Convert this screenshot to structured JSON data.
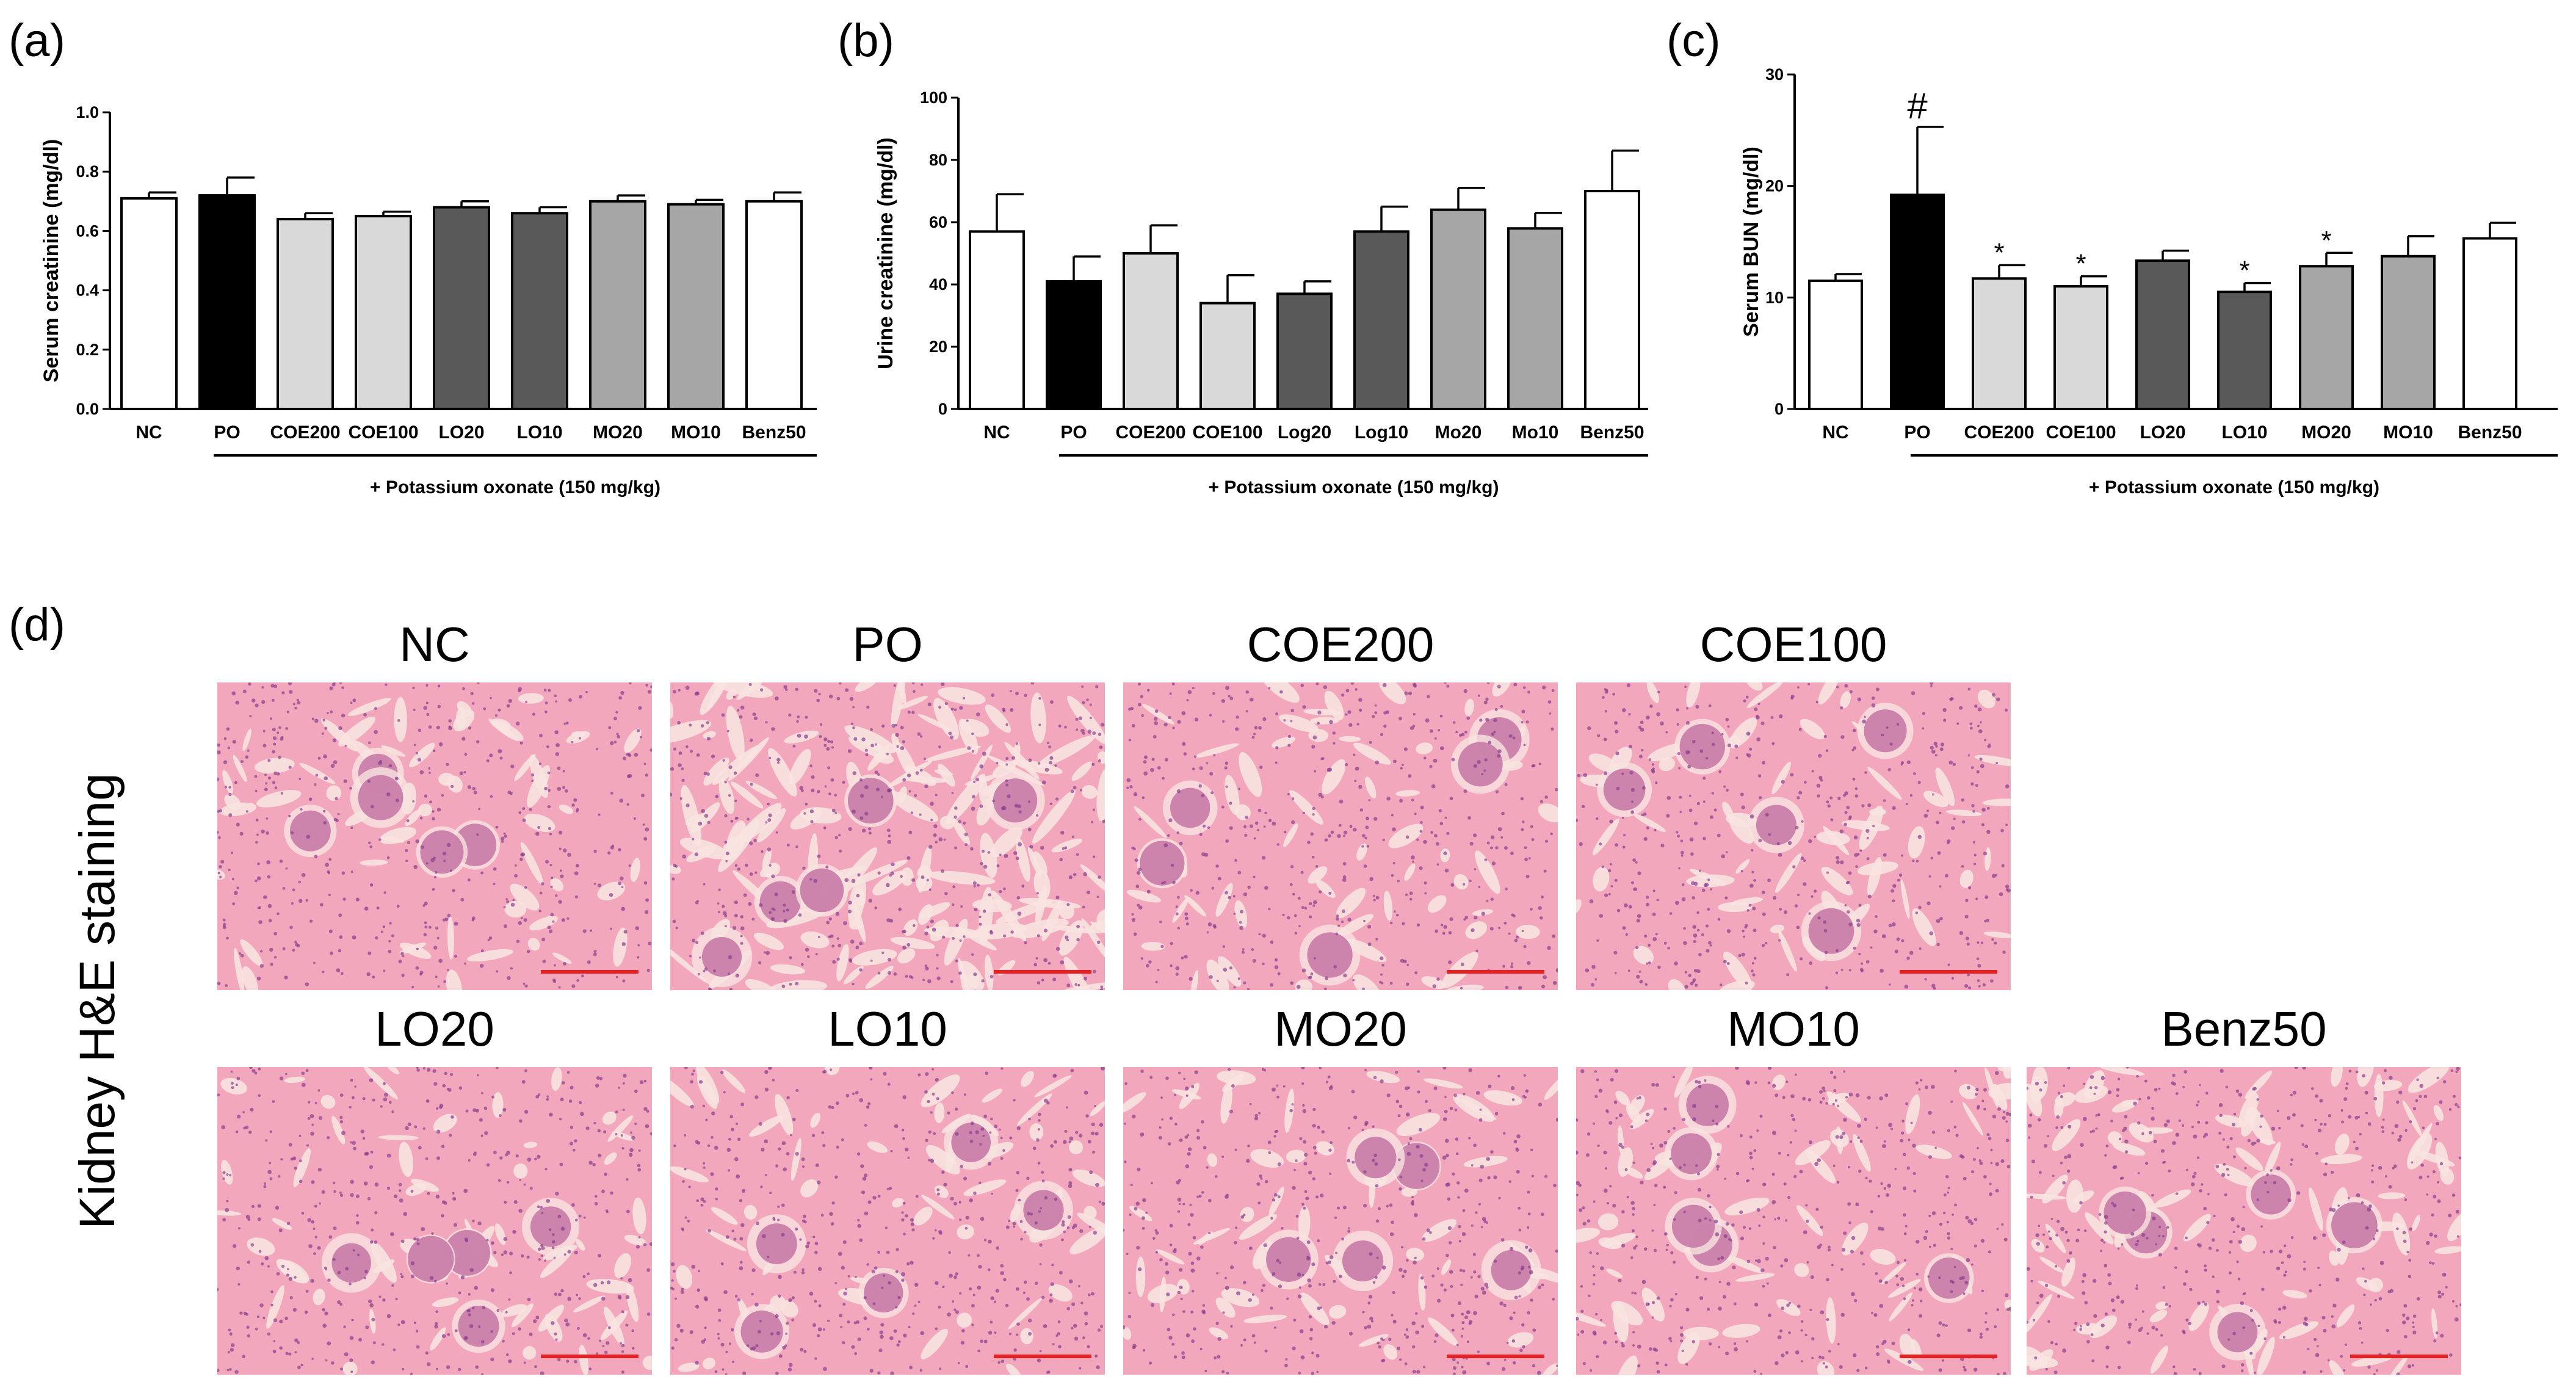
{
  "chart_data": [
    {
      "type": "bar",
      "panel": "(a)",
      "ylabel": "Serum creatinine (mg/dl)",
      "ylim": [
        0,
        1.0
      ],
      "yticks": [
        "0.0",
        "0.2",
        "0.4",
        "0.6",
        "0.8",
        "1.0"
      ],
      "ytick_values": [
        0,
        0.2,
        0.4,
        0.6,
        0.8,
        1.0
      ],
      "categories": [
        "NC",
        "PO",
        "COE200",
        "COE100",
        "LO20",
        "LO10",
        "MO20",
        "MO10",
        "Benz50"
      ],
      "values": [
        0.71,
        0.72,
        0.64,
        0.65,
        0.68,
        0.66,
        0.7,
        0.69,
        0.7
      ],
      "errors": [
        0.02,
        0.06,
        0.02,
        0.015,
        0.02,
        0.02,
        0.02,
        0.015,
        0.03
      ],
      "significance": [
        "",
        "",
        "",
        "",
        "",
        "",
        "",
        "",
        ""
      ],
      "treatment_label": "+ Potassium oxonate (150 mg/kg)"
    },
    {
      "type": "bar",
      "panel": "(b)",
      "ylabel": "Urine creatinine (mg/dl)",
      "ylim": [
        0,
        100
      ],
      "yticks": [
        "0",
        "20",
        "40",
        "60",
        "80",
        "100"
      ],
      "ytick_values": [
        0,
        20,
        40,
        60,
        80,
        100
      ],
      "categories": [
        "NC",
        "PO",
        "COE200",
        "COE100",
        "Log20",
        "Log10",
        "Mo20",
        "Mo10",
        "Benz50"
      ],
      "values": [
        57,
        41,
        50,
        34,
        37,
        57,
        64,
        58,
        70
      ],
      "errors": [
        12,
        8,
        9,
        9,
        4,
        8,
        7,
        5,
        13
      ],
      "significance": [
        "",
        "",
        "",
        "",
        "",
        "",
        "",
        "",
        ""
      ],
      "treatment_label": "+ Potassium oxonate (150 mg/kg)"
    },
    {
      "type": "bar",
      "panel": "(c)",
      "ylabel": "Serum BUN (mg/dl)",
      "ylim": [
        0,
        30
      ],
      "yticks": [
        "0",
        "10",
        "20",
        "30"
      ],
      "ytick_values": [
        0,
        10,
        20,
        30
      ],
      "categories": [
        "NC",
        "PO",
        "COE200",
        "COE100",
        "LO20",
        "LO10",
        "MO20",
        "MO10",
        "Benz50"
      ],
      "values": [
        11.5,
        19.2,
        11.7,
        11.0,
        13.3,
        10.5,
        12.8,
        13.7,
        15.3
      ],
      "errors": [
        0.6,
        6.1,
        1.2,
        0.9,
        0.9,
        0.8,
        1.2,
        1.8,
        1.4
      ],
      "significance": [
        "",
        "#",
        "*",
        "*",
        "",
        "*",
        "*",
        "",
        ""
      ],
      "treatment_label": "+ Potassium oxonate (150 mg/kg)"
    }
  ],
  "colors": {
    "NC": "#ffffff",
    "PO": "#000000",
    "COE200": "#d9d9d9",
    "COE100": "#d9d9d9",
    "LO20": "#595959",
    "LO10": "#595959",
    "MO20": "#a6a6a6",
    "MO10": "#a6a6a6",
    "Benz50": "#ffffff",
    "tissue_base": "#f2a7bd",
    "tissue_lumen": "#f8e3e0",
    "tissue_nuclei": "#8a3f8f",
    "scale_bar": "#e52121"
  },
  "panel_d": {
    "letter": "(d)",
    "side_label": "Kidney H&E staining",
    "row1": [
      "NC",
      "PO",
      "COE200",
      "COE100"
    ],
    "row2": [
      "LO20",
      "LO10",
      "MO20",
      "MO10",
      "Benz50"
    ]
  }
}
